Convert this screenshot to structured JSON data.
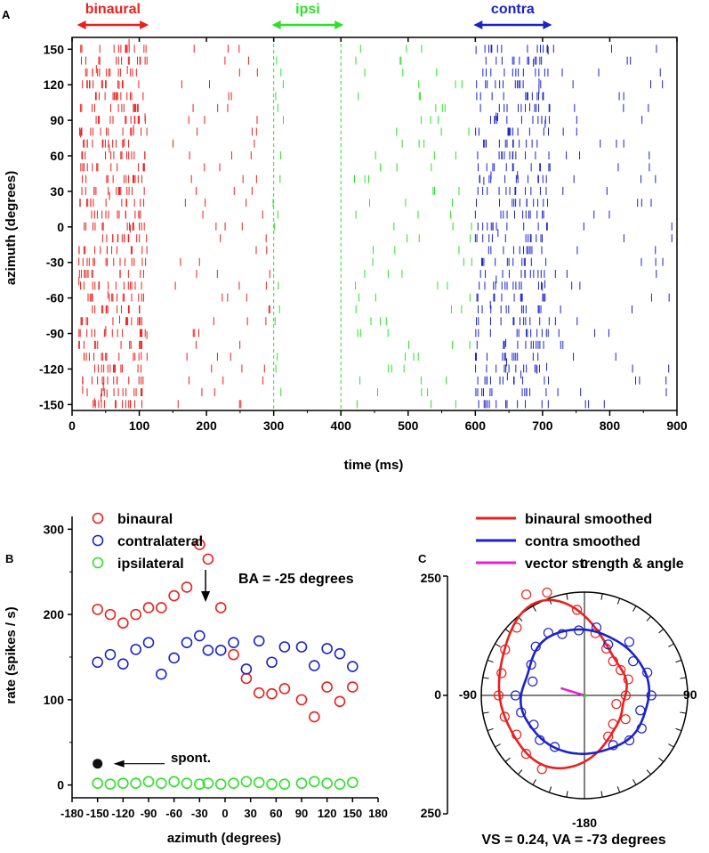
{
  "colors": {
    "binaural": "#e8211f",
    "contra": "#1c22c8",
    "ipsi": "#2ee02a",
    "vector": "#e81ee0",
    "axis": "#000000",
    "spont": "#111111"
  },
  "chart_data": [
    {
      "id": "A",
      "type": "raster",
      "panel_label": "A",
      "xlabel": "time (ms)",
      "ylabel": "azimuth (degrees)",
      "xlim": [
        0,
        900
      ],
      "ylim": [
        -155,
        160
      ],
      "xticks": [
        0,
        100,
        200,
        300,
        400,
        500,
        600,
        700,
        800,
        900
      ],
      "yticks": [
        150,
        120,
        90,
        60,
        30,
        0,
        -30,
        -60,
        -90,
        -120,
        -150
      ],
      "azimuth_rows": [
        -150,
        -140,
        -130,
        -120,
        -110,
        -100,
        -90,
        -80,
        -70,
        -60,
        -50,
        -40,
        -30,
        -20,
        -10,
        0,
        10,
        20,
        30,
        40,
        50,
        60,
        70,
        80,
        90,
        100,
        110,
        120,
        130,
        140,
        150
      ],
      "stimulus_periods": [
        {
          "label": "binaural",
          "start": 10,
          "end": 110,
          "series": "binaural"
        },
        {
          "label": "ipsi",
          "start": 300,
          "end": 400,
          "series": "ipsi"
        },
        {
          "label": "contra",
          "start": 600,
          "end": 710,
          "series": "contra"
        }
      ],
      "series": [
        {
          "name": "binaural",
          "segments": [
            {
              "start": 10,
              "end": 112,
              "spikes_per_row": 14
            },
            {
              "start": 150,
              "end": 295,
              "spikes_per_row": 2.5
            }
          ]
        },
        {
          "name": "ipsi",
          "segments": [
            {
              "start": 298,
              "end": 315,
              "spikes_per_row": 0.4
            },
            {
              "start": 420,
              "end": 595,
              "spikes_per_row": 3
            }
          ]
        },
        {
          "name": "contra",
          "segments": [
            {
              "start": 600,
              "end": 712,
              "spikes_per_row": 12
            },
            {
              "start": 712,
              "end": 895,
              "spikes_per_row": 2.5
            }
          ]
        }
      ]
    },
    {
      "id": "B",
      "type": "scatter",
      "panel_label": "B",
      "xlabel": "azimuth (degrees)",
      "ylabel": "rate (spikes / s)",
      "xlim": [
        -180,
        180
      ],
      "ylim": [
        -15,
        315
      ],
      "xticks": [
        -180,
        -150,
        -120,
        -90,
        -60,
        -30,
        0,
        30,
        60,
        90,
        120,
        150,
        180
      ],
      "yticks": [
        0,
        100,
        200,
        300
      ],
      "x": [
        -150,
        -135,
        -120,
        -105,
        -90,
        -75,
        -60,
        -45,
        -30,
        -20,
        -5,
        10,
        25,
        40,
        55,
        70,
        90,
        105,
        120,
        135,
        150
      ],
      "series": [
        {
          "name": "binaural",
          "values": [
            206,
            200,
            190,
            200,
            208,
            208,
            222,
            232,
            282,
            265,
            208,
            153,
            125,
            108,
            107,
            113,
            100,
            80,
            115,
            98,
            115
          ]
        },
        {
          "name": "contralateral",
          "values": [
            144,
            153,
            142,
            159,
            167,
            130,
            149,
            167,
            175,
            158,
            158,
            167,
            136,
            169,
            144,
            162,
            162,
            140,
            160,
            154,
            139
          ]
        },
        {
          "name": "ipsilateral",
          "values": [
            2,
            1,
            2,
            2,
            4,
            2,
            4,
            2,
            1,
            2,
            1,
            2,
            4,
            3,
            1,
            1,
            2,
            4,
            2,
            1,
            3
          ]
        }
      ],
      "spont": {
        "label": "spont.",
        "azimuth": -150,
        "rate": 25
      },
      "annotation": {
        "text": "BA = -25 degrees",
        "azimuth": -25
      },
      "legend": [
        {
          "label": "binaural",
          "series": "binaural"
        },
        {
          "label": "contralateral",
          "series": "contra"
        },
        {
          "label": "ipsilateral",
          "series": "ipsi"
        }
      ]
    },
    {
      "id": "C",
      "type": "polar",
      "panel_label": "C",
      "rmax": 250,
      "angle_labels": {
        "top": "0",
        "bottom": "-180",
        "left": "-90",
        "right": "90"
      },
      "vertical_axis_labels": [
        "250",
        "0",
        "250"
      ],
      "legend": [
        {
          "label": "binaural smoothed",
          "series": "binaural"
        },
        {
          "label": "contra smoothed",
          "series": "contra"
        },
        {
          "label": "vector strength & angle",
          "series": "vector"
        }
      ],
      "vector": {
        "vs": 0.24,
        "angle_deg": -73,
        "length": 60
      },
      "caption": "VS = 0.24, VA = -73 degrees"
    }
  ]
}
